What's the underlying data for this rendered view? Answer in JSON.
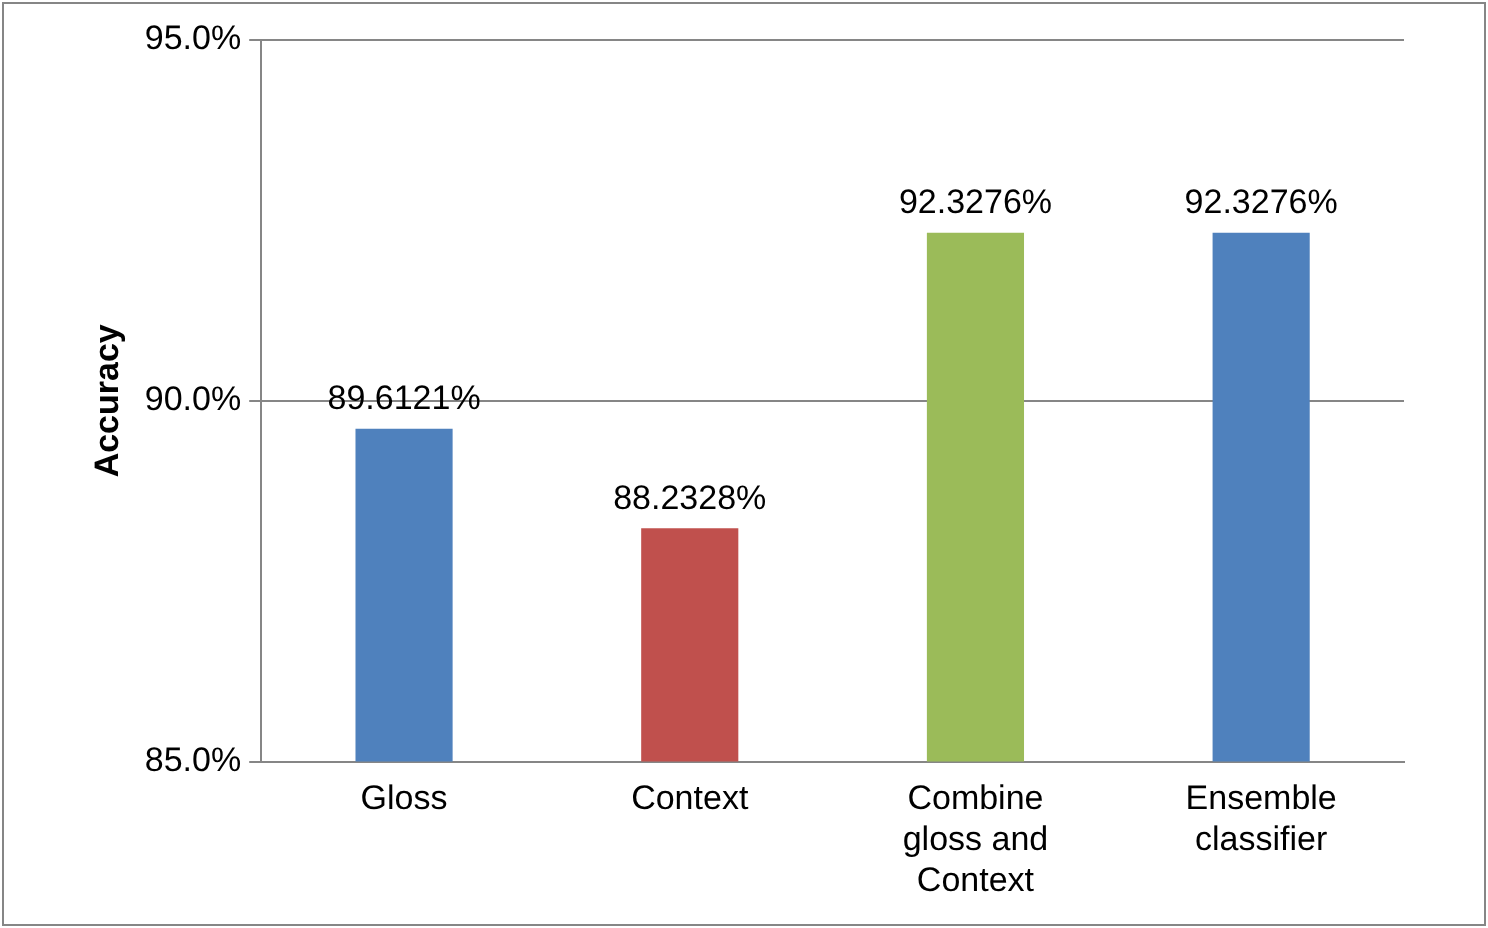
{
  "chart_data": {
    "type": "bar",
    "ylabel": "Accuracy",
    "categories": [
      "Gloss",
      "Context",
      "Combine gloss and Context",
      "Ensemble classifier"
    ],
    "values": [
      89.6121,
      88.2328,
      92.3276,
      92.3276
    ],
    "colors": [
      "#4f81bd",
      "#c0504d",
      "#9bbb59",
      "#4f81bd"
    ],
    "value_labels": [
      "89.6121%",
      "88.2328%",
      "92.3276%",
      "92.3276%"
    ],
    "ylim": [
      85,
      95
    ],
    "yticks": [
      {
        "value": 85,
        "label": "85.0%"
      },
      {
        "value": 90,
        "label": "90.0%"
      },
      {
        "value": 95,
        "label": "95.0%"
      }
    ],
    "grid": "y",
    "legend": false
  }
}
